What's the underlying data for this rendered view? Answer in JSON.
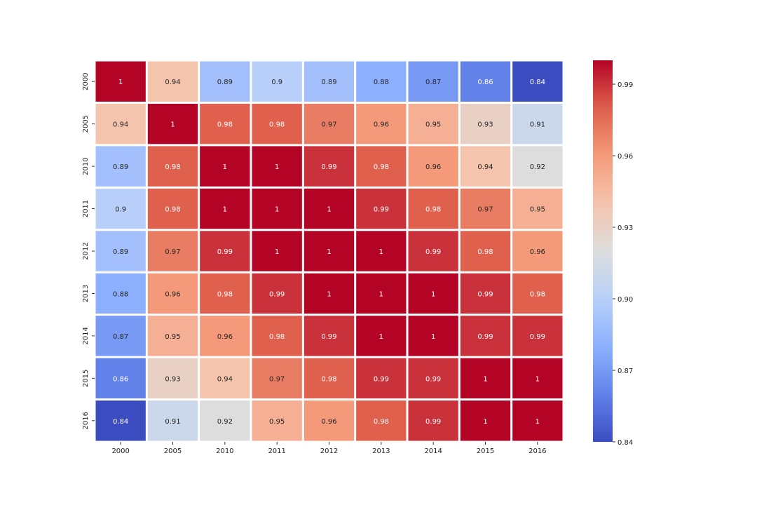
{
  "chart_data": {
    "type": "heatmap",
    "title": "",
    "xlabel": "",
    "ylabel": "",
    "x_categories": [
      "2000",
      "2005",
      "2010",
      "2011",
      "2012",
      "2013",
      "2014",
      "2015",
      "2016"
    ],
    "y_categories": [
      "2000",
      "2005",
      "2010",
      "2011",
      "2012",
      "2013",
      "2014",
      "2015",
      "2016"
    ],
    "values": [
      [
        1,
        0.94,
        0.89,
        0.9,
        0.89,
        0.88,
        0.87,
        0.86,
        0.84
      ],
      [
        0.94,
        1,
        0.98,
        0.98,
        0.97,
        0.96,
        0.95,
        0.93,
        0.91
      ],
      [
        0.89,
        0.98,
        1,
        1,
        0.99,
        0.98,
        0.96,
        0.94,
        0.92
      ],
      [
        0.9,
        0.98,
        1,
        1,
        1,
        0.99,
        0.98,
        0.97,
        0.95
      ],
      [
        0.89,
        0.97,
        0.99,
        1,
        1,
        1,
        0.99,
        0.98,
        0.96
      ],
      [
        0.88,
        0.96,
        0.98,
        0.99,
        1,
        1,
        1,
        0.99,
        0.98
      ],
      [
        0.87,
        0.95,
        0.96,
        0.98,
        0.99,
        1,
        1,
        0.99,
        0.99
      ],
      [
        0.86,
        0.93,
        0.94,
        0.97,
        0.98,
        0.99,
        0.99,
        1,
        1
      ],
      [
        0.84,
        0.91,
        0.92,
        0.95,
        0.96,
        0.98,
        0.99,
        1,
        1
      ]
    ],
    "colormap": "coolwarm",
    "colorbar": {
      "range": [
        0.84,
        1.0
      ],
      "ticks": [
        0.84,
        0.87,
        0.9,
        0.93,
        0.96,
        0.99
      ],
      "tick_labels": [
        "0.84",
        "0.87",
        "0.90",
        "0.93",
        "0.96",
        "0.99"
      ]
    },
    "annotations": true,
    "grid": false,
    "cell_separator_color": "#ffffff"
  }
}
